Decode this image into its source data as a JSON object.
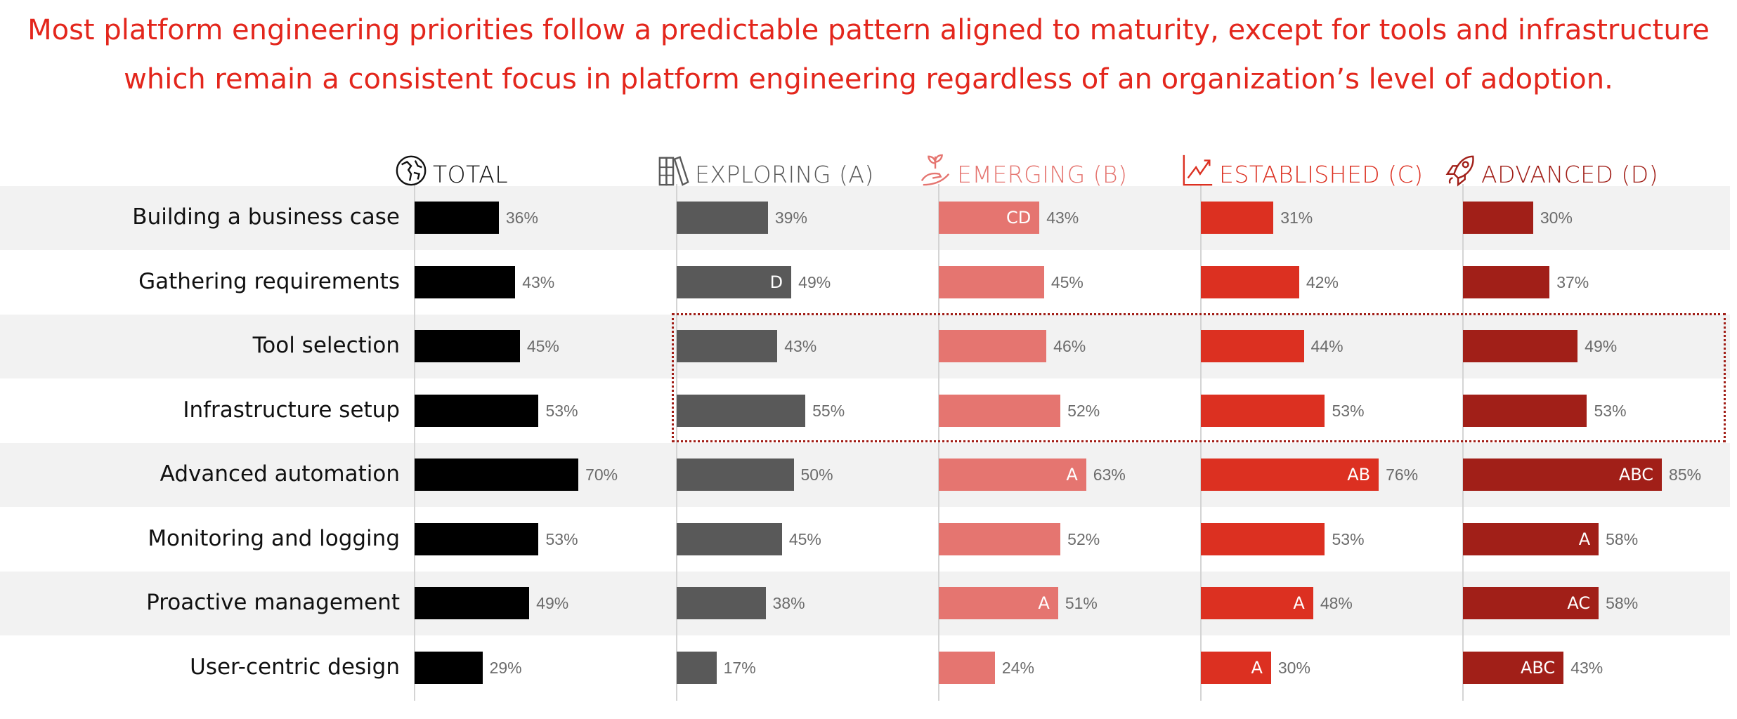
{
  "title_lines": [
    "Most platform engineering priorities follow a predictable pattern aligned to maturity, except for tools and infrastructure",
    "which remain a consistent focus in platform engineering regardless of an organization’s level of adoption."
  ],
  "chart_data": {
    "type": "bar",
    "orientation": "horizontal",
    "unit": "%",
    "grid": false,
    "categories": [
      "Building a business case",
      "Gathering requirements",
      "Tool selection",
      "Infrastructure setup",
      "Advanced automation",
      "Monitoring and logging",
      "Proactive management",
      "User-centric design"
    ],
    "series": [
      {
        "name": "TOTAL",
        "icon": "globe-icon",
        "color": "#000000",
        "header_color": "#111111",
        "values": [
          36,
          43,
          45,
          53,
          70,
          53,
          49,
          29
        ],
        "annotations": [
          "",
          "",
          "",
          "",
          "",
          "",
          "",
          ""
        ]
      },
      {
        "name": "EXPLORING (A)",
        "icon": "books-icon",
        "color": "#595959",
        "header_color": "#595959",
        "values": [
          39,
          49,
          43,
          55,
          50,
          45,
          38,
          17
        ],
        "annotations": [
          "",
          "D",
          "",
          "",
          "",
          "",
          "",
          ""
        ]
      },
      {
        "name": "EMERGING (B)",
        "icon": "sprout-hand-icon",
        "color": "#e57570",
        "header_color": "#e57570",
        "values": [
          43,
          45,
          46,
          52,
          63,
          52,
          51,
          24
        ],
        "annotations": [
          "CD",
          "",
          "",
          "",
          "A",
          "",
          "A",
          ""
        ]
      },
      {
        "name": "ESTABLISHED (C)",
        "icon": "trend-chart-icon",
        "color": "#dc3021",
        "header_color": "#dc3021",
        "values": [
          31,
          42,
          44,
          53,
          76,
          53,
          48,
          30
        ],
        "annotations": [
          "",
          "",
          "",
          "",
          "AB",
          "",
          "A",
          "A"
        ]
      },
      {
        "name": "ADVANCED (D)",
        "icon": "rocket-icon",
        "color": "#a11f18",
        "header_color": "#a11f18",
        "values": [
          30,
          37,
          49,
          53,
          85,
          58,
          58,
          43
        ],
        "annotations": [
          "",
          "",
          "",
          "",
          "ABC",
          "A",
          "AC",
          "ABC"
        ]
      }
    ],
    "highlighted_categories": [
      "Tool selection",
      "Infrastructure setup"
    ],
    "highlight_color": "#a11f18",
    "row_shading": "#f2f2f2"
  }
}
